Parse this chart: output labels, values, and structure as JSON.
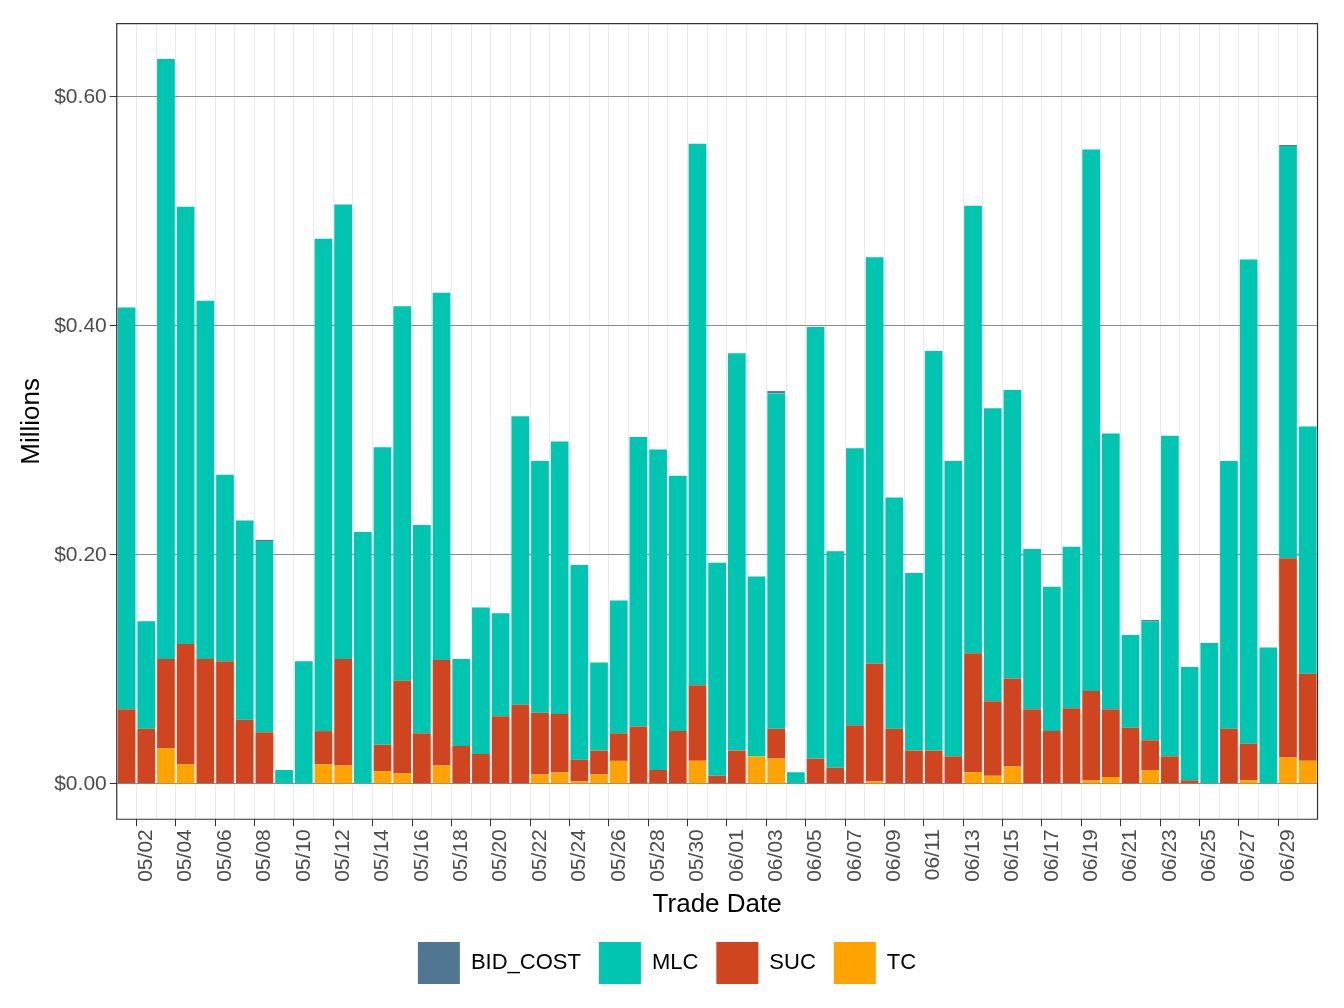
{
  "chart_data": {
    "type": "bar",
    "xlabel": "Trade Date",
    "ylabel": "Millions",
    "stacked": true,
    "grid": true,
    "legend": "bottom",
    "categories": [
      null,
      "05/02",
      null,
      "05/04",
      null,
      "05/06",
      null,
      "05/08",
      null,
      "05/10",
      null,
      "05/12",
      null,
      "05/14",
      null,
      "05/16",
      null,
      "05/18",
      null,
      "05/20",
      null,
      "05/22",
      null,
      "05/24",
      null,
      "05/26",
      null,
      "05/28",
      null,
      "05/30",
      null,
      "06/01",
      null,
      "06/03",
      null,
      "06/05",
      null,
      "06/07",
      null,
      "06/09",
      null,
      "06/11",
      null,
      "06/13",
      null,
      "06/15",
      null,
      "06/17",
      null,
      "06/19",
      null,
      "06/21",
      null,
      "06/23",
      null,
      "06/25",
      null,
      "06/27",
      null,
      "06/29",
      null
    ],
    "ylim": [
      -0.031,
      0.664
    ],
    "yticks": [
      {
        "value": 0,
        "label": "$0.00"
      },
      {
        "value": 0.2,
        "label": "$0.20"
      },
      {
        "value": 0.4,
        "label": "$0.40"
      },
      {
        "value": 0.6,
        "label": "$0.60"
      }
    ],
    "series": [
      {
        "name": "TC",
        "color": "#ffa300",
        "values": [
          0,
          0,
          0.031,
          0.017,
          null,
          null,
          0,
          0,
          0,
          0,
          0.017,
          0.016,
          0,
          0.011,
          0.009,
          0,
          0.016,
          0,
          0,
          0,
          0,
          0.008,
          0.01,
          0.002,
          0.008,
          0.02,
          0,
          null,
          0,
          0.02,
          0,
          0,
          0.024,
          0.022,
          0,
          0,
          0,
          0,
          0.002,
          0,
          0,
          0,
          0,
          0.01,
          0.007,
          0.015,
          0,
          0,
          0,
          0.003,
          0.006,
          0,
          0.012,
          0,
          0,
          0,
          0,
          0.003,
          0,
          0.023,
          0.02
        ]
      },
      {
        "name": "SUC",
        "color": "#cf4520",
        "values": [
          0.065,
          0.048,
          0.078,
          0.105,
          0.109,
          0.107,
          0.056,
          0.045,
          0,
          0,
          0.029,
          0.093,
          0,
          0.023,
          0.081,
          0.044,
          0.092,
          0.033,
          0.026,
          0.059,
          0.069,
          0.054,
          0.051,
          0.019,
          0.021,
          0.024,
          0.05,
          0.012,
          0.046,
          0.066,
          0.007,
          0.029,
          0,
          0.026,
          0,
          0.022,
          0.014,
          0.051,
          0.103,
          0.048,
          0.029,
          0.029,
          0.024,
          0.104,
          0.065,
          0.077,
          0.065,
          0.046,
          0.066,
          0.078,
          0.059,
          0.049,
          0.026,
          0.024,
          0.003,
          0,
          0.048,
          0.032,
          0,
          0.174,
          0.076
        ]
      },
      {
        "name": "MLC",
        "color": "#00c5b0",
        "values": [
          0.351,
          0.094,
          0.524,
          0.382,
          0.313,
          0.163,
          0.174,
          0.167,
          0.012,
          0.107,
          0.43,
          0.397,
          0.22,
          0.26,
          0.327,
          0.182,
          0.321,
          0.076,
          0.128,
          0.09,
          0.252,
          0.22,
          0.238,
          0.17,
          0.077,
          0.116,
          0.253,
          0.28,
          0.223,
          0.473,
          0.186,
          0.347,
          0.157,
          0.293,
          0.01,
          0.377,
          0.189,
          0.242,
          0.355,
          0.202,
          0.155,
          0.349,
          0.258,
          0.391,
          0.256,
          0.252,
          0.14,
          0.126,
          0.141,
          0.473,
          0.241,
          0.081,
          0.104,
          0.28,
          0.099,
          0.123,
          0.234,
          0.423,
          0.119,
          0.36,
          0.216
        ]
      },
      {
        "name": "BID_COST",
        "color": "#517691",
        "values": [
          0,
          0,
          0,
          0,
          0,
          0,
          0,
          0.001,
          0,
          0,
          0,
          0,
          0,
          0,
          0,
          0,
          0,
          0,
          0,
          0,
          0,
          0,
          0,
          0,
          0,
          0,
          0,
          0,
          0,
          0,
          0,
          0,
          0,
          0.002,
          0,
          0,
          0,
          0,
          0,
          0,
          0,
          0,
          0,
          0,
          0,
          0,
          0,
          0,
          0,
          0,
          0,
          0,
          0.001,
          0,
          0,
          0,
          0,
          0,
          0,
          0.001,
          0
        ]
      }
    ]
  }
}
